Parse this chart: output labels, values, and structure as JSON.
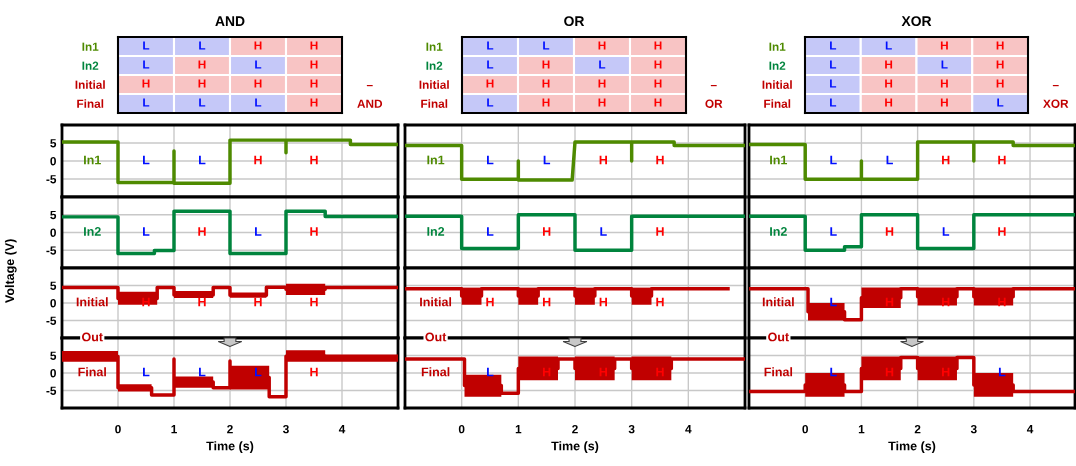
{
  "chart_data": [
    {
      "type": "other",
      "title": "AND",
      "categories": [
        null,
        null,
        null,
        null
      ],
      "y_categories": [
        "In1",
        "In2",
        "Initial",
        "Final"
      ],
      "y2_categories": [
        null,
        null,
        "–",
        "AND"
      ],
      "cell_labels": [
        [
          "L",
          "L",
          "H",
          "H"
        ],
        [
          "L",
          "H",
          "L",
          "H"
        ],
        [
          "H",
          "H",
          "H",
          "H"
        ],
        [
          "L",
          "L",
          "L",
          "H"
        ]
      ],
      "colors": [
        "#c5c8f8",
        "#c5c8f8",
        "#f8c4c4",
        "#f8c4c4",
        "#c5c8f8",
        "#f8c4c4",
        "#c5c8f8",
        "#f8c4c4",
        "#f8c4c4",
        "#f8c4c4",
        "#f8c4c4",
        "#f8c4c4",
        "#c5c8f8",
        "#c5c8f8",
        "#c5c8f8",
        "#f8c4c4"
      ]
    },
    {
      "type": "other",
      "title": "OR",
      "categories": [
        null,
        null,
        null,
        null
      ],
      "y_categories": [
        "In1",
        "In2",
        "Initial",
        "Final"
      ],
      "y2_categories": [
        null,
        null,
        "–",
        "OR"
      ],
      "cell_labels": [
        [
          "L",
          "L",
          "H",
          "H"
        ],
        [
          "L",
          "H",
          "L",
          "H"
        ],
        [
          "H",
          "H",
          "H",
          "H"
        ],
        [
          "L",
          "H",
          "H",
          "H"
        ]
      ],
      "colors": [
        "#c5c8f8",
        "#c5c8f8",
        "#f8c4c4",
        "#f8c4c4",
        "#c5c8f8",
        "#f8c4c4",
        "#c5c8f8",
        "#f8c4c4",
        "#f8c4c4",
        "#f8c4c4",
        "#f8c4c4",
        "#f8c4c4",
        "#c5c8f8",
        "#f8c4c4",
        "#f8c4c4",
        "#f8c4c4"
      ]
    },
    {
      "type": "other",
      "title": "XOR",
      "categories": [
        null,
        null,
        null,
        null
      ],
      "y_categories": [
        "In1",
        "In2",
        "Initial",
        "Final"
      ],
      "y2_categories": [
        null,
        null,
        "–",
        "XOR"
      ],
      "cell_labels": [
        [
          "L",
          "L",
          "H",
          "H"
        ],
        [
          "L",
          "H",
          "L",
          "H"
        ],
        [
          "L",
          "H",
          "H",
          "H"
        ],
        [
          "L",
          "H",
          "H",
          "L"
        ]
      ],
      "colors": [
        "#c5c8f8",
        "#c5c8f8",
        "#f8c4c4",
        "#f8c4c4",
        "#c5c8f8",
        "#f8c4c4",
        "#c5c8f8",
        "#f8c4c4",
        "#c5c8f8",
        "#f8c4c4",
        "#f8c4c4",
        "#f8c4c4",
        "#c5c8f8",
        "#f8c4c4",
        "#f8c4c4",
        "#c5c8f8"
      ]
    },
    {
      "type": "line",
      "xlim": [
        -1,
        5
      ],
      "xticks": [
        0,
        1,
        2,
        3,
        4
      ],
      "ylim": [
        -10,
        10
      ],
      "yticks": [
        5,
        0,
        -5
      ],
      "grid": true,
      "tick_labels": "y",
      "series": [
        {
          "name": "In1",
          "color": "#4e8a00",
          "x": [
            -1,
            0,
            0,
            1,
            1,
            1,
            2,
            2,
            3,
            3,
            3,
            4.15,
            4.15,
            5
          ],
          "values": [
            5.3,
            5.3,
            -6,
            -6,
            2.8,
            -6.2,
            -6.2,
            5.8,
            5.8,
            2.3,
            5.8,
            5.8,
            4.6,
            4.6
          ]
        }
      ],
      "annotations": [
        "L",
        "L",
        "H",
        "H"
      ]
    },
    {
      "type": "line",
      "xlim": [
        -1,
        5
      ],
      "xticks": [
        0,
        1,
        2,
        3,
        4
      ],
      "ylim": [
        -10,
        10
      ],
      "yticks": [
        5,
        0,
        -5
      ],
      "grid": true,
      "tick_labels": false,
      "series": [
        {
          "name": "In1",
          "color": "#4e8a00",
          "x": [
            -1,
            0,
            0,
            1,
            1,
            1,
            1.95,
            2,
            3,
            3,
            3,
            3.75,
            3.75,
            5
          ],
          "values": [
            4.3,
            4.3,
            -5.1,
            -5.1,
            0,
            -5.3,
            -5.3,
            5.3,
            5.3,
            0,
            5.3,
            5.3,
            4.3,
            4.3
          ]
        }
      ],
      "annotations": [
        "L",
        "L",
        "H",
        "H"
      ]
    },
    {
      "type": "line",
      "xlim": [
        -1,
        4.8
      ],
      "xticks": [
        0,
        1,
        2,
        3,
        4
      ],
      "ylim": [
        -10,
        10
      ],
      "yticks": [
        5,
        0,
        -5
      ],
      "grid": true,
      "tick_labels": false,
      "series": [
        {
          "name": "In1",
          "color": "#4e8a00",
          "x": [
            -1,
            0,
            0,
            1,
            1,
            1,
            2,
            2,
            3,
            3,
            3,
            3.7,
            3.7,
            4.8
          ],
          "values": [
            4.6,
            4.6,
            -5.1,
            -5.1,
            0,
            -5.1,
            -5.1,
            5.3,
            5.3,
            0,
            5.3,
            5.3,
            4.3,
            4.3
          ]
        }
      ],
      "annotations": [
        "L",
        "L",
        "H",
        "H"
      ]
    },
    {
      "type": "line",
      "xlim": [
        -1,
        5
      ],
      "xticks": [
        0,
        1,
        2,
        3,
        4
      ],
      "ylim": [
        -10,
        10
      ],
      "yticks": [
        5,
        0,
        -5
      ],
      "grid": true,
      "tick_labels": "y",
      "ylabel": "Voltage (V)",
      "series": [
        {
          "name": "In2",
          "color": "#00843d",
          "x": [
            -1,
            0,
            0,
            0.65,
            0.65,
            1,
            1,
            2,
            2,
            3,
            3,
            3.7,
            3.7,
            5
          ],
          "values": [
            4.4,
            4.4,
            -5.9,
            -5.9,
            -5.1,
            -5.1,
            6,
            6,
            -5.9,
            -5.9,
            6,
            6,
            4.5,
            4.5
          ]
        }
      ],
      "annotations": [
        "L",
        "H",
        "L",
        "H"
      ]
    },
    {
      "type": "line",
      "xlim": [
        -1,
        5
      ],
      "xticks": [
        0,
        1,
        2,
        3,
        4
      ],
      "ylim": [
        -10,
        10
      ],
      "yticks": [
        5,
        0,
        -5
      ],
      "grid": true,
      "tick_labels": false,
      "series": [
        {
          "name": "In2",
          "color": "#00843d",
          "x": [
            -1,
            0,
            0,
            1,
            1,
            2,
            2,
            3,
            3,
            5
          ],
          "values": [
            4.6,
            4.6,
            -4.5,
            -4.5,
            5,
            5,
            -5,
            -5,
            4.6,
            4.6
          ]
        }
      ],
      "annotations": [
        "L",
        "H",
        "L",
        "H"
      ]
    },
    {
      "type": "line",
      "xlim": [
        -1,
        4.8
      ],
      "xticks": [
        0,
        1,
        2,
        3,
        4
      ],
      "ylim": [
        -10,
        10
      ],
      "yticks": [
        5,
        0,
        -5
      ],
      "grid": true,
      "tick_labels": false,
      "series": [
        {
          "name": "In2",
          "color": "#00843d",
          "x": [
            -1,
            0,
            0,
            0.7,
            0.7,
            1,
            1,
            2,
            2,
            3,
            3,
            4.8
          ],
          "values": [
            4.6,
            4.6,
            -5,
            -5,
            -4,
            -4,
            5,
            5,
            -4.5,
            -4.5,
            5,
            5
          ]
        }
      ],
      "annotations": [
        "L",
        "H",
        "L",
        "H"
      ]
    },
    {
      "type": "line",
      "xlim": [
        -1,
        5
      ],
      "xticks": [
        0,
        1,
        2,
        3,
        4
      ],
      "ylim": [
        -10,
        10
      ],
      "yticks": [
        5,
        0,
        -5
      ],
      "grid": true,
      "tick_labels": "y",
      "series": [
        {
          "name": "Initial",
          "color": "#c00000",
          "x": [
            -1,
            0,
            0,
            0.7,
            0.7,
            1,
            1,
            1.7,
            1.7,
            2,
            2,
            2.65,
            2.65,
            3,
            3,
            3.7,
            3.7,
            5
          ],
          "values": [
            4.4,
            4.4,
            1.3,
            1.3,
            4.4,
            4.4,
            2.3,
            2.3,
            4.4,
            4.4,
            2.2,
            2.2,
            4.5,
            4.5,
            3.9,
            3.9,
            4.4,
            4.4
          ],
          "lower": [
            null,
            null,
            -0.5,
            -0.5,
            null,
            null,
            1.4,
            1.4,
            null,
            null,
            1.5,
            1.5,
            null,
            null,
            2.3,
            2.3,
            null,
            null
          ],
          "upper": [
            null,
            null,
            3.2,
            3.2,
            null,
            null,
            3.4,
            3.4,
            null,
            null,
            3,
            3,
            null,
            null,
            5.5,
            5.5,
            null,
            null
          ]
        }
      ],
      "annotations": [
        "H",
        "H",
        "H",
        "H"
      ]
    },
    {
      "type": "line",
      "xlim": [
        -1,
        5
      ],
      "xticks": [
        0,
        1,
        2,
        3,
        4
      ],
      "ylim": [
        -10,
        10
      ],
      "yticks": [
        5,
        0,
        -5
      ],
      "grid": true,
      "tick_labels": false,
      "series": [
        {
          "name": "Initial",
          "color": "#c00000",
          "x": [
            -1,
            0,
            0,
            0.35,
            0.35,
            1,
            1,
            1.35,
            1.35,
            2,
            2,
            2.35,
            2.35,
            3,
            3,
            3.35,
            3.35,
            4.7
          ],
          "values": [
            4.1,
            4.1,
            2,
            2,
            4.1,
            4.1,
            2,
            2,
            4.1,
            4.1,
            2,
            2,
            4.1,
            4.1,
            2,
            2,
            4.1,
            4.1
          ],
          "lower": [
            null,
            null,
            -0.5,
            -0.5,
            null,
            null,
            -0.5,
            -0.5,
            null,
            null,
            -0.5,
            -0.5,
            null,
            null,
            -0.5,
            -0.5,
            null,
            null
          ],
          "upper": [
            null,
            null,
            4.4,
            4.4,
            null,
            null,
            4.4,
            4.4,
            null,
            null,
            4.4,
            4.4,
            null,
            null,
            4.4,
            4.4,
            null,
            null
          ]
        }
      ],
      "annotations": [
        "H",
        "H",
        "H",
        "H"
      ]
    },
    {
      "type": "line",
      "xlim": [
        -1,
        4.8
      ],
      "xticks": [
        0,
        1,
        2,
        3,
        4
      ],
      "ylim": [
        -10,
        10
      ],
      "yticks": [
        5,
        0,
        -5
      ],
      "grid": true,
      "tick_labels": false,
      "series": [
        {
          "name": "Initial",
          "color": "#c00000",
          "x": [
            -1,
            0.05,
            0.05,
            0.7,
            0.7,
            1,
            1,
            1.7,
            1.7,
            2,
            2,
            2.7,
            2.7,
            3,
            3,
            3.7,
            3.7,
            4.8
          ],
          "values": [
            4.1,
            4.1,
            -2.5,
            -2.5,
            -4.8,
            -4.8,
            1.5,
            1.5,
            4.1,
            4.1,
            1.8,
            1.8,
            4.1,
            4.1,
            1.8,
            1.8,
            4.1,
            4.1
          ],
          "lower": [
            null,
            null,
            -5,
            -5,
            null,
            null,
            -1.4,
            -1.4,
            null,
            null,
            -0.7,
            -0.7,
            null,
            null,
            -0.7,
            -0.7,
            null,
            null
          ],
          "upper": [
            null,
            null,
            0,
            0,
            null,
            null,
            4.4,
            4.4,
            null,
            null,
            4.4,
            4.4,
            null,
            null,
            4.4,
            4.4,
            null,
            null
          ]
        }
      ],
      "annotations": [
        "L",
        "H",
        "H",
        "H"
      ]
    },
    {
      "type": "line",
      "xlim": [
        -1,
        5
      ],
      "xticks": [
        0,
        1,
        2,
        3,
        4
      ],
      "ylim": [
        -10,
        10
      ],
      "yticks": [
        5,
        0,
        -5
      ],
      "grid": true,
      "xlabel": "Time (s)",
      "series": [
        {
          "name": "Final",
          "color": "#c00000",
          "x": [
            -1,
            0,
            0,
            0.6,
            0.6,
            1,
            1,
            1,
            1.7,
            1.7,
            2,
            2,
            2,
            2.7,
            2.7,
            3,
            3,
            3.7,
            3.7,
            5
          ],
          "values": [
            4.7,
            4.7,
            -4.2,
            -4.2,
            -6.3,
            -6.3,
            4,
            -2.6,
            -2.6,
            -4.2,
            -4.2,
            3.4,
            -1.3,
            -1.3,
            -6.8,
            -6.8,
            4.8,
            4.8,
            4.3,
            4.3
          ],
          "lower": [
            3.2,
            3.2,
            -5.3,
            -5.3,
            null,
            null,
            null,
            -4.2,
            -4.2,
            null,
            null,
            null,
            -4.7,
            -4.7,
            null,
            null,
            3.2,
            3.2,
            3.2,
            3.2
          ],
          "upper": [
            6.3,
            6.3,
            -3.2,
            -3.2,
            null,
            null,
            null,
            -1,
            -1,
            null,
            null,
            null,
            2.1,
            2.1,
            null,
            null,
            6.5,
            6.5,
            5.3,
            5.3
          ]
        }
      ],
      "annotations": [
        "L",
        "L",
        "L",
        "H",
        "Out"
      ]
    },
    {
      "type": "line",
      "xlim": [
        -1,
        5
      ],
      "xticks": [
        0,
        1,
        2,
        3,
        4
      ],
      "ylim": [
        -10,
        10
      ],
      "yticks": [
        5,
        0,
        -5
      ],
      "grid": true,
      "tick_labels": "x",
      "xlabel": "Time (s)",
      "series": [
        {
          "name": "Final",
          "color": "#c00000",
          "x": [
            -1,
            0.05,
            0.05,
            0.7,
            0.7,
            1,
            1,
            1.7,
            1.7,
            2,
            2,
            2.7,
            2.7,
            3,
            3,
            3.7,
            3.7,
            5
          ],
          "values": [
            4,
            4,
            -3.6,
            -3.6,
            -5.8,
            -5.8,
            1.3,
            1.3,
            4,
            4,
            1.3,
            1.3,
            4,
            4,
            1.3,
            1.3,
            4,
            4
          ],
          "lower": [
            null,
            null,
            -6.8,
            -6.8,
            null,
            null,
            -2.1,
            -2.1,
            null,
            null,
            -2.1,
            -2.1,
            null,
            null,
            -2.1,
            -2.1,
            null,
            null
          ],
          "upper": [
            null,
            null,
            -0.5,
            -0.5,
            null,
            null,
            4.7,
            4.7,
            null,
            null,
            4.7,
            4.7,
            null,
            null,
            4.7,
            4.7,
            null,
            null
          ]
        }
      ],
      "annotations": [
        "L",
        "H",
        "H",
        "H",
        "Out"
      ]
    },
    {
      "type": "line",
      "xlim": [
        -1,
        4.8
      ],
      "xticks": [
        0,
        1,
        2,
        3,
        4
      ],
      "ylim": [
        -10,
        10
      ],
      "yticks": [
        5,
        0,
        -5
      ],
      "grid": true,
      "tick_labels": "x",
      "xlabel": "Time (s)",
      "series": [
        {
          "name": "Final",
          "color": "#c00000",
          "x": [
            -1,
            0,
            0,
            0.7,
            0.7,
            1,
            1,
            1.7,
            1.7,
            2,
            2,
            2.7,
            2.7,
            3,
            3,
            3.7,
            3.7,
            4.8
          ],
          "values": [
            -5.3,
            -5.3,
            -3.4,
            -3.4,
            -5.3,
            -5.3,
            1.3,
            1.3,
            4.4,
            4.4,
            1.3,
            1.3,
            4.4,
            4.4,
            -3.4,
            -3.4,
            -5.3,
            -5.3
          ],
          "lower": [
            null,
            null,
            -6.8,
            -6.8,
            null,
            null,
            -2.1,
            -2.1,
            null,
            null,
            -2.1,
            -2.1,
            null,
            null,
            -6.8,
            -6.8,
            null,
            null
          ],
          "upper": [
            null,
            null,
            0,
            0,
            null,
            null,
            4.7,
            4.7,
            null,
            null,
            4.7,
            4.7,
            null,
            null,
            0,
            0,
            null,
            null
          ]
        }
      ],
      "annotations": [
        "L",
        "H",
        "H",
        "L",
        "Out"
      ]
    }
  ]
}
